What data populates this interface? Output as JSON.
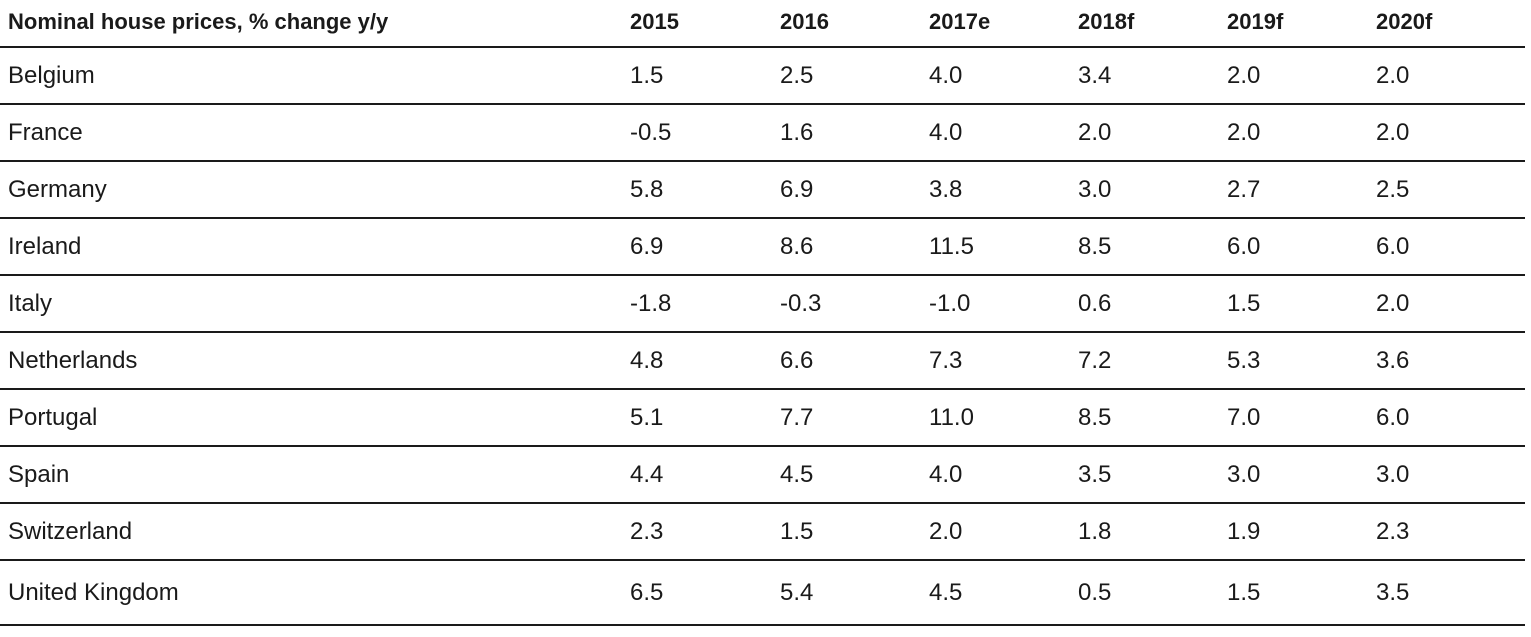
{
  "table": {
    "header": [
      "Nominal house prices, % change y/y",
      "2015",
      "2016",
      "2017e",
      "2018f",
      "2019f",
      "2020f"
    ],
    "rows": [
      [
        "Belgium",
        "1.5",
        "2.5",
        "4.0",
        "3.4",
        "2.0",
        "2.0"
      ],
      [
        "France",
        "-0.5",
        "1.6",
        "4.0",
        "2.0",
        "2.0",
        "2.0"
      ],
      [
        "Germany",
        "5.8",
        "6.9",
        "3.8",
        "3.0",
        "2.7",
        "2.5"
      ],
      [
        "Ireland",
        "6.9",
        "8.6",
        "11.5",
        "8.5",
        "6.0",
        "6.0"
      ],
      [
        "Italy",
        "-1.8",
        "-0.3",
        "-1.0",
        "0.6",
        "1.5",
        "2.0"
      ],
      [
        "Netherlands",
        "4.8",
        "6.6",
        "7.3",
        "7.2",
        "5.3",
        "3.6"
      ],
      [
        "Portugal",
        "5.1",
        "7.7",
        "11.0",
        "8.5",
        "7.0",
        "6.0"
      ],
      [
        "Spain",
        "4.4",
        "4.5",
        "4.0",
        "3.5",
        "3.0",
        "3.0"
      ],
      [
        "Switzerland",
        "2.3",
        "1.5",
        "2.0",
        "1.8",
        "1.9",
        "2.3"
      ],
      [
        "United Kingdom",
        "6.5",
        "5.4",
        "4.5",
        "0.5",
        "1.5",
        "3.5"
      ]
    ]
  }
}
